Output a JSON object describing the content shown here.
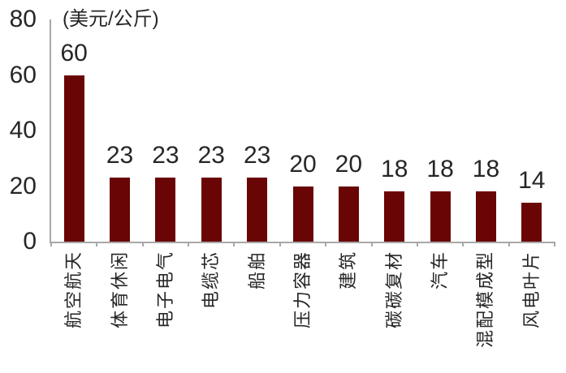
{
  "chart_data": {
    "type": "bar",
    "title": "(美元/公斤)",
    "ylabel": "美元/公斤",
    "categories": [
      "航空航天",
      "体育休闲",
      "电子电气",
      "电缆芯",
      "船舶",
      "压力容器",
      "建筑",
      "碳碳复材",
      "汽车",
      "混配模成型",
      "风电叶片"
    ],
    "values": [
      60,
      23,
      23,
      23,
      23,
      20,
      20,
      18,
      18,
      18,
      14
    ],
    "ylim": [
      0,
      80
    ],
    "yticks": [
      0,
      20,
      40,
      60,
      80
    ],
    "grid": "off",
    "legend": "none",
    "data_labels": "outside-end",
    "bar_color": "#6A0505",
    "axis_color": "#A8A8A8",
    "text_color": "#262626"
  }
}
